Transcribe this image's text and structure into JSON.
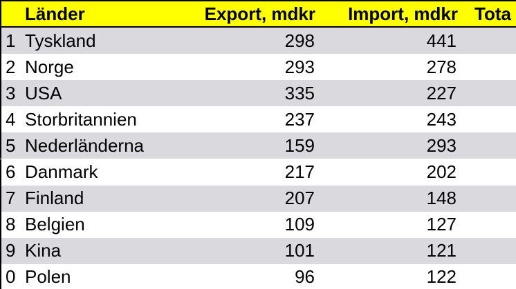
{
  "table": {
    "header": [
      "Länder",
      "Export, mdkr",
      "Import, mdkr",
      "Tota"
    ],
    "rows": [
      [
        "1",
        "Tyskland",
        298,
        441
      ],
      [
        "2",
        "Norge",
        293,
        278
      ],
      [
        "3",
        "USA",
        335,
        227
      ],
      [
        "4",
        "Storbritannien",
        237,
        243
      ],
      [
        "5",
        "Nederländerna",
        159,
        293
      ],
      [
        "6",
        "Danmark",
        217,
        202
      ],
      [
        "7",
        "Finland",
        207,
        148
      ],
      [
        "8",
        "Belgien",
        109,
        127
      ],
      [
        "9",
        "Kina",
        101,
        121
      ],
      [
        "0",
        "Polen",
        96,
        122
      ]
    ]
  }
}
